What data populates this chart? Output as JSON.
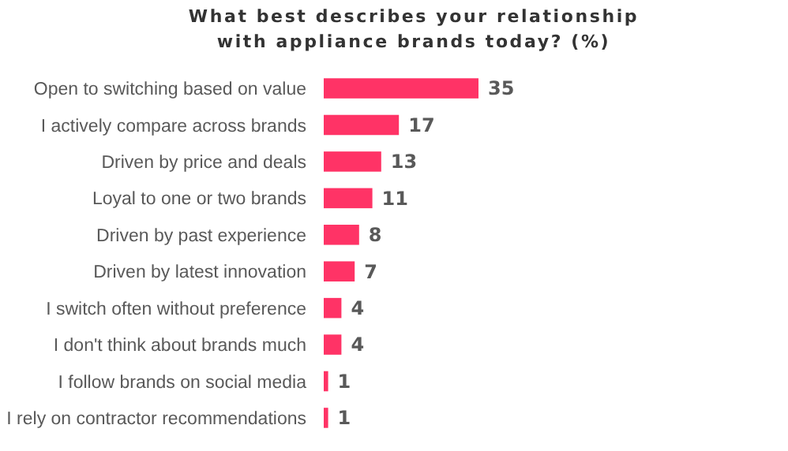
{
  "chart_data": {
    "type": "bar",
    "orientation": "horizontal",
    "title": "What best describes your relationship with appliance brands today? (%)",
    "categories": [
      "Open to switching based on value",
      "I actively compare across brands",
      "Driven by price and deals",
      "Loyal to one or two brands",
      "Driven by past experience",
      "Driven by latest innovation",
      "I switch often without preference",
      "I don't think about brands much",
      "I follow brands on social media",
      "I rely on contractor recommendations"
    ],
    "values": [
      35,
      17,
      13,
      11,
      8,
      7,
      4,
      4,
      1,
      1
    ],
    "color": "#ff3366",
    "data_labels": true
  }
}
